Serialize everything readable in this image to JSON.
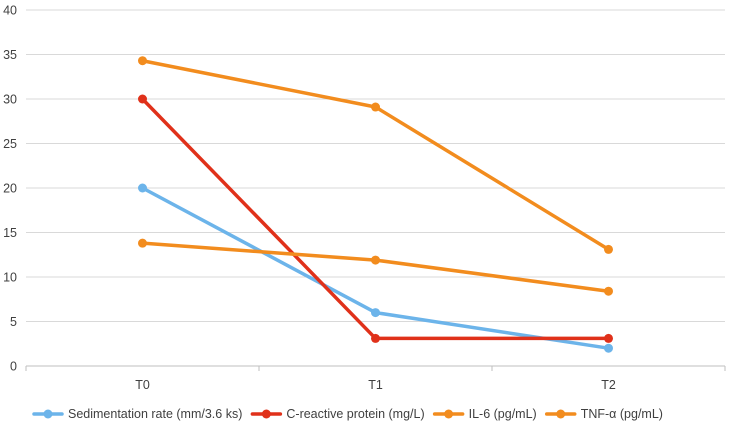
{
  "chart_data": {
    "type": "line",
    "title": "",
    "xlabel": "",
    "ylabel": "",
    "categories": [
      "T0",
      "T1",
      "T2"
    ],
    "ylim": [
      0,
      40
    ],
    "yticks": [
      0,
      5,
      10,
      15,
      20,
      25,
      30,
      35,
      40
    ],
    "grid": true,
    "legend": "bottom",
    "series": [
      {
        "name": "Sedimentation rate (mm/3.6 ks)",
        "color": "#6CB4EA",
        "values": [
          20,
          6,
          2
        ]
      },
      {
        "name": "C-reactive protein (mg/L)",
        "color": "#E0311A",
        "values": [
          30,
          3.1,
          3.1
        ]
      },
      {
        "name": "IL-6 (pg/mL)",
        "color": "#F28C1E",
        "values": [
          13.8,
          11.9,
          8.4
        ]
      },
      {
        "name": "TNF-α (pg/mL)",
        "color": "#F28C1E",
        "values": [
          34.3,
          29.1,
          13.1
        ]
      }
    ]
  }
}
